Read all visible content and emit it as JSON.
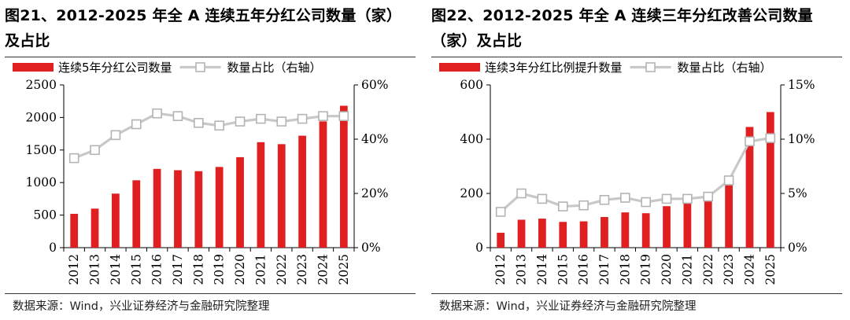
{
  "charts": [
    {
      "id": "left",
      "title": "图21、2012-2025 年全 A 连续五年分红公司数量（家）及占比",
      "source": "数据来源：Wind，兴业证券经济与金融研究院整理",
      "chart_data": {
        "type": "bar",
        "categories": [
          "2012",
          "2013",
          "2014",
          "2015",
          "2016",
          "2017",
          "2018",
          "2019",
          "2020",
          "2021",
          "2022",
          "2023",
          "2024",
          "2025"
        ],
        "series": [
          {
            "name": "连续5年分红公司数量",
            "type": "bar",
            "axis": "left",
            "color": "#e02020",
            "values": [
              520,
              600,
              830,
              1035,
              1210,
              1190,
              1175,
              1240,
              1390,
              1620,
              1590,
              1720,
              1940,
              2180
            ]
          },
          {
            "name": "数量占比（右轴）",
            "type": "line",
            "axis": "right",
            "color": "#c8c8c8",
            "values": [
              33.0,
              36.0,
              41.5,
              45.5,
              49.5,
              48.5,
              46.0,
              45.0,
              46.5,
              47.5,
              46.5,
              47.5,
              48.5,
              48.5
            ]
          }
        ],
        "y_left": {
          "min": 0,
          "max": 2500,
          "ticks": [
            "0",
            "500",
            "1000",
            "1500",
            "2000",
            "2500"
          ]
        },
        "y_right": {
          "min": 0,
          "max": 60,
          "ticks": [
            "0%",
            "20%",
            "40%",
            "60%"
          ]
        },
        "legend": "top-left",
        "grid": false
      }
    },
    {
      "id": "right",
      "title": "图22、2012-2025 年全 A 连续三年分红改善公司数量（家）及占比",
      "source": "数据来源：Wind，兴业证券经济与金融研究院整理",
      "chart_data": {
        "type": "bar",
        "categories": [
          "2012",
          "2013",
          "2014",
          "2015",
          "2016",
          "2017",
          "2018",
          "2019",
          "2020",
          "2021",
          "2022",
          "2023",
          "2024",
          "2025"
        ],
        "series": [
          {
            "name": "连续3年分红比例提升数量",
            "type": "bar",
            "axis": "left",
            "color": "#e02020",
            "values": [
              55,
              103,
              107,
              95,
              97,
              113,
              130,
              127,
              153,
              165,
              173,
              230,
              445,
              500
            ]
          },
          {
            "name": "数量占比（右轴）",
            "type": "line",
            "axis": "right",
            "color": "#c8c8c8",
            "values": [
              3.3,
              5.0,
              4.5,
              3.8,
              3.9,
              4.4,
              4.6,
              4.2,
              4.5,
              4.5,
              4.7,
              6.2,
              9.8,
              10.1
            ]
          }
        ],
        "y_left": {
          "min": 0,
          "max": 600,
          "ticks": [
            "0",
            "200",
            "400",
            "600"
          ]
        },
        "y_right": {
          "min": 0,
          "max": 15,
          "ticks": [
            "0%",
            "5%",
            "10%",
            "15%"
          ]
        },
        "legend": "top-left",
        "grid": false
      }
    }
  ]
}
